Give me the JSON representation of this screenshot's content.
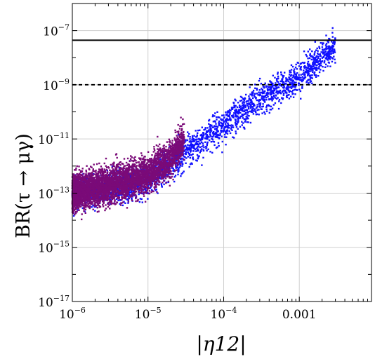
{
  "chart_data": {
    "type": "scatter",
    "x_scale": "log",
    "y_scale": "log",
    "xlim": [
      1e-06,
      0.009
    ],
    "ylim": [
      1e-17,
      1e-06
    ],
    "x_ticks": [
      {
        "value": 1e-06,
        "base": "10",
        "exp": "−6"
      },
      {
        "value": 1e-05,
        "base": "10",
        "exp": "−5"
      },
      {
        "value": 0.0001,
        "base": "10",
        "exp": "−4"
      },
      {
        "value": 0.001,
        "base": "0.001",
        "exp": ""
      }
    ],
    "y_ticks": [
      {
        "value": 1e-17,
        "base": "10",
        "exp": "−17"
      },
      {
        "value": 1e-15,
        "base": "10",
        "exp": "−15"
      },
      {
        "value": 1e-13,
        "base": "10",
        "exp": "−13"
      },
      {
        "value": 1e-11,
        "base": "10",
        "exp": "−11"
      },
      {
        "value": 1e-09,
        "base": "10",
        "exp": "−9"
      },
      {
        "value": 1e-07,
        "base": "10",
        "exp": "−7"
      }
    ],
    "xlabel": "|η12|",
    "ylabel": "BR(τ → μγ)",
    "grid": true,
    "reference_lines": [
      {
        "y": 4.4e-08,
        "style": "solid",
        "color": "#000000"
      },
      {
        "y": 1e-09,
        "style": "dashed",
        "color": "#000000"
      }
    ],
    "series": [
      {
        "color": "#1010ff",
        "description_points": [
          {
            "x": 1e-06,
            "y": 1e-13
          },
          {
            "x": 1e-05,
            "y": 3e-13
          },
          {
            "x": 3e-05,
            "y": 3e-12
          },
          {
            "x": 0.0001,
            "y": 3e-11
          },
          {
            "x": 0.0003,
            "y": 3e-10
          },
          {
            "x": 0.001,
            "y": 2e-09
          },
          {
            "x": 0.003,
            "y": 3e-08
          }
        ]
      },
      {
        "color": "#7a0a78",
        "description_points": [
          {
            "x": 1e-06,
            "y": 1e-13
          },
          {
            "x": 3e-06,
            "y": 2e-13
          },
          {
            "x": 1e-05,
            "y": 5e-13
          },
          {
            "x": 2e-05,
            "y": 2e-12
          },
          {
            "x": 3e-05,
            "y": 1e-11
          }
        ]
      }
    ]
  }
}
